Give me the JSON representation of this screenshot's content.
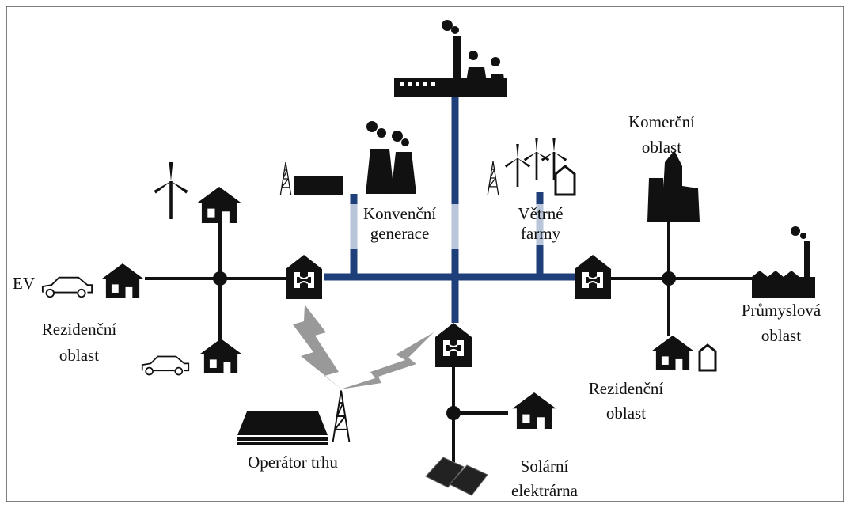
{
  "labels": {
    "ev": "EV",
    "residential_left": {
      "lines": [
        "Rezidenční",
        "oblast"
      ]
    },
    "conventional": {
      "lines": [
        "Konvenční",
        "generace"
      ]
    },
    "wind": {
      "lines": [
        "Větrné",
        "farmy"
      ]
    },
    "commercial": {
      "lines": [
        "Komerční",
        "oblast"
      ]
    },
    "industrial": {
      "lines": [
        "Průmyslová",
        "oblast"
      ]
    },
    "residential_right": {
      "lines": [
        "Rezidenční",
        "oblast"
      ]
    },
    "market_operator": "Operátor trhu",
    "solar": {
      "lines": [
        "Solární",
        "elektrárna"
      ]
    }
  }
}
